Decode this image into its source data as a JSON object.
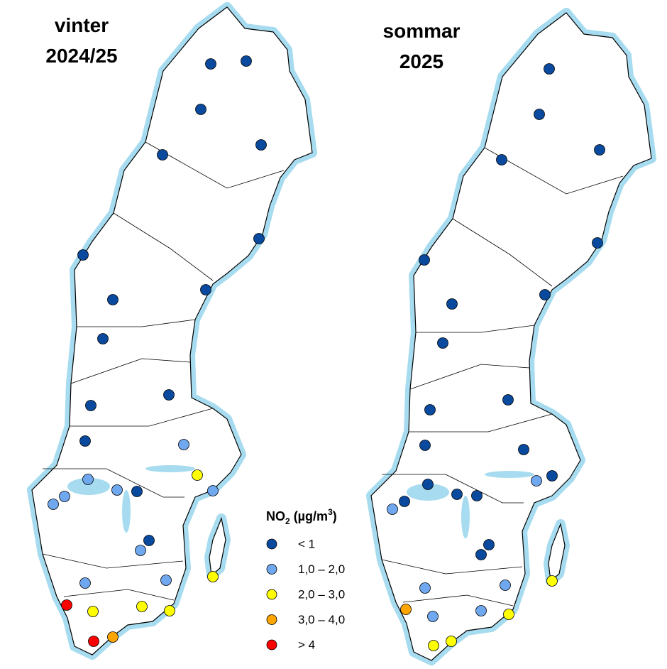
{
  "maps": [
    {
      "title": [
        "vinter",
        "2024/25"
      ]
    },
    {
      "title": [
        "sommar",
        "2025"
      ]
    }
  ],
  "legend": {
    "title": [
      "NO",
      "2",
      " (µg/m",
      "3",
      ")"
    ],
    "entries": [
      {
        "label": "< 1",
        "color": "#0a4a9e"
      },
      {
        "label": "1,0 – 2,0",
        "color": "#6fa8ef"
      },
      {
        "label": "2,0 – 3,0",
        "color": "#ffff00"
      },
      {
        "label": "3,0 – 4,0",
        "color": "#ffa500"
      },
      {
        "label": "> 4",
        "color": "#ff0000"
      }
    ]
  }
}
